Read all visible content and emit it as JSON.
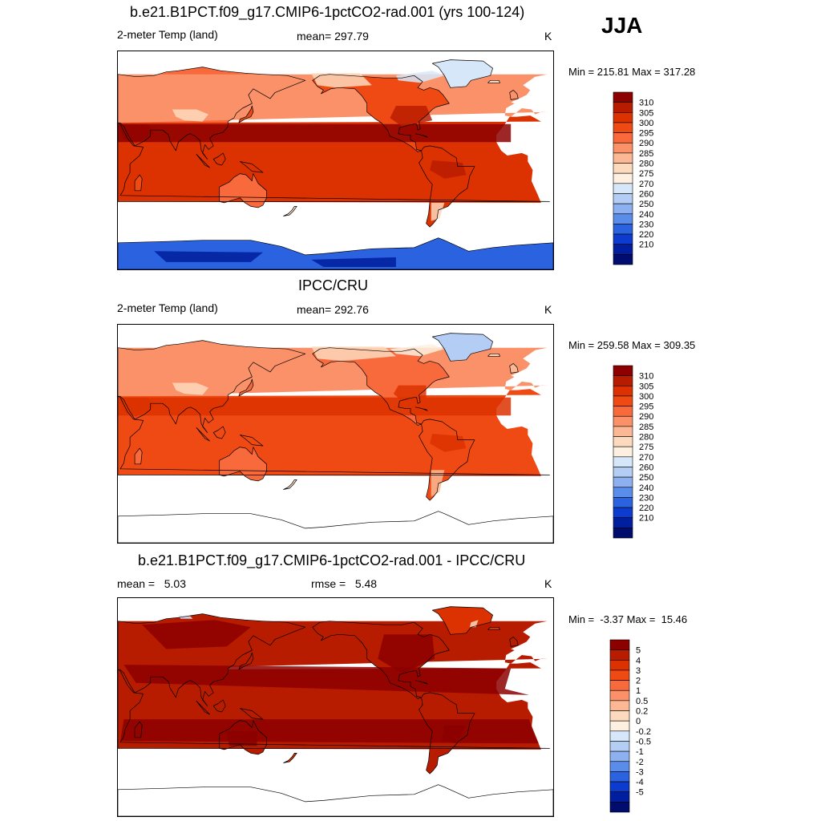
{
  "season": "JJA",
  "panels": [
    {
      "title": "b.e21.B1PCT.f09_g17.CMIP6-1pctCO2-rad.001 (yrs 100-124)",
      "left_label": "2-meter Temp (land)",
      "center_label": "mean= 297.79",
      "units": "K",
      "minmax": "Min = 215.81 Max = 317.28",
      "colorbar_labels": [
        "310",
        "305",
        "300",
        "295",
        "290",
        "285",
        "280",
        "275",
        "270",
        "260",
        "250",
        "240",
        "230",
        "220",
        "210"
      ],
      "colorbar_colors": [
        "#8c0000",
        "#b81c00",
        "#dc3100",
        "#f04a14",
        "#f86a3c",
        "#fa9168",
        "#fcb894",
        "#fdd9bd",
        "#fdf0e0",
        "#d7e7fa",
        "#b3cdf5",
        "#8db0f0",
        "#5a8ce9",
        "#2b62df",
        "#0d3bcf",
        "#001e9e",
        "#000c6e"
      ],
      "mapstyle": "model"
    },
    {
      "title": "IPCC/CRU",
      "left_label": "2-meter Temp (land)",
      "center_label": "mean= 292.76",
      "units": "K",
      "minmax": "Min = 259.58 Max = 309.35",
      "colorbar_labels": [
        "310",
        "305",
        "300",
        "295",
        "290",
        "285",
        "280",
        "275",
        "270",
        "260",
        "250",
        "240",
        "230",
        "220",
        "210"
      ],
      "colorbar_colors": [
        "#8c0000",
        "#b81c00",
        "#dc3100",
        "#f04a14",
        "#f86a3c",
        "#fa9168",
        "#fcb894",
        "#fdd9bd",
        "#fdf0e0",
        "#d7e7fa",
        "#b3cdf5",
        "#8db0f0",
        "#5a8ce9",
        "#2b62df",
        "#0d3bcf",
        "#001e9e",
        "#000c6e"
      ],
      "mapstyle": "obs"
    },
    {
      "title": "b.e21.B1PCT.f09_g17.CMIP6-1pctCO2-rad.001 - IPCC/CRU",
      "left_label": "mean =   5.03",
      "center_label": "rmse =   5.48",
      "units": "K",
      "minmax": "Min =  -3.37 Max =  15.46",
      "colorbar_labels": [
        "5",
        "4",
        "3",
        "2",
        "1",
        "0.5",
        "0.2",
        "0",
        "-0.2",
        "-0.5",
        "-1",
        "-2",
        "-3",
        "-4",
        "-5"
      ],
      "colorbar_colors": [
        "#8c0000",
        "#b81c00",
        "#dc3100",
        "#f04a14",
        "#f86a3c",
        "#fa9168",
        "#fcb894",
        "#fdd9bd",
        "#fdf0e0",
        "#d7e7fa",
        "#b3cdf5",
        "#8db0f0",
        "#5a8ce9",
        "#2b62df",
        "#0d3bcf",
        "#001e9e",
        "#000c6e"
      ],
      "mapstyle": "diff"
    }
  ]
}
